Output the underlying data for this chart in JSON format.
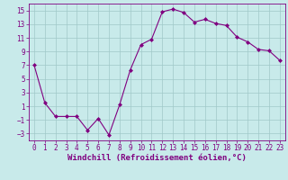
{
  "x": [
    0,
    1,
    2,
    3,
    4,
    5,
    6,
    7,
    8,
    9,
    10,
    11,
    12,
    13,
    14,
    15,
    16,
    17,
    18,
    19,
    20,
    21,
    22,
    23
  ],
  "y": [
    7,
    1.5,
    -0.5,
    -0.5,
    -0.5,
    -2.5,
    -0.8,
    -3.2,
    1.2,
    6.3,
    10.0,
    10.8,
    14.8,
    15.2,
    14.7,
    13.3,
    13.7,
    13.1,
    12.8,
    11.1,
    10.4,
    9.3,
    9.1,
    7.7
  ],
  "line_color": "#800080",
  "marker": "D",
  "marker_size": 2.0,
  "bg_color": "#c8eaea",
  "grid_color": "#a0c8c8",
  "xlabel": "Windchill (Refroidissement éolien,°C)",
  "xlabel_color": "#800080",
  "ylim": [
    -4,
    16
  ],
  "yticks": [
    -3,
    -1,
    1,
    3,
    5,
    7,
    9,
    11,
    13,
    15
  ],
  "xticks": [
    0,
    1,
    2,
    3,
    4,
    5,
    6,
    7,
    8,
    9,
    10,
    11,
    12,
    13,
    14,
    15,
    16,
    17,
    18,
    19,
    20,
    21,
    22,
    23
  ],
  "tick_color": "#800080",
  "spine_color": "#800080",
  "tick_fontsize": 5.5,
  "xlabel_fontsize": 6.5
}
